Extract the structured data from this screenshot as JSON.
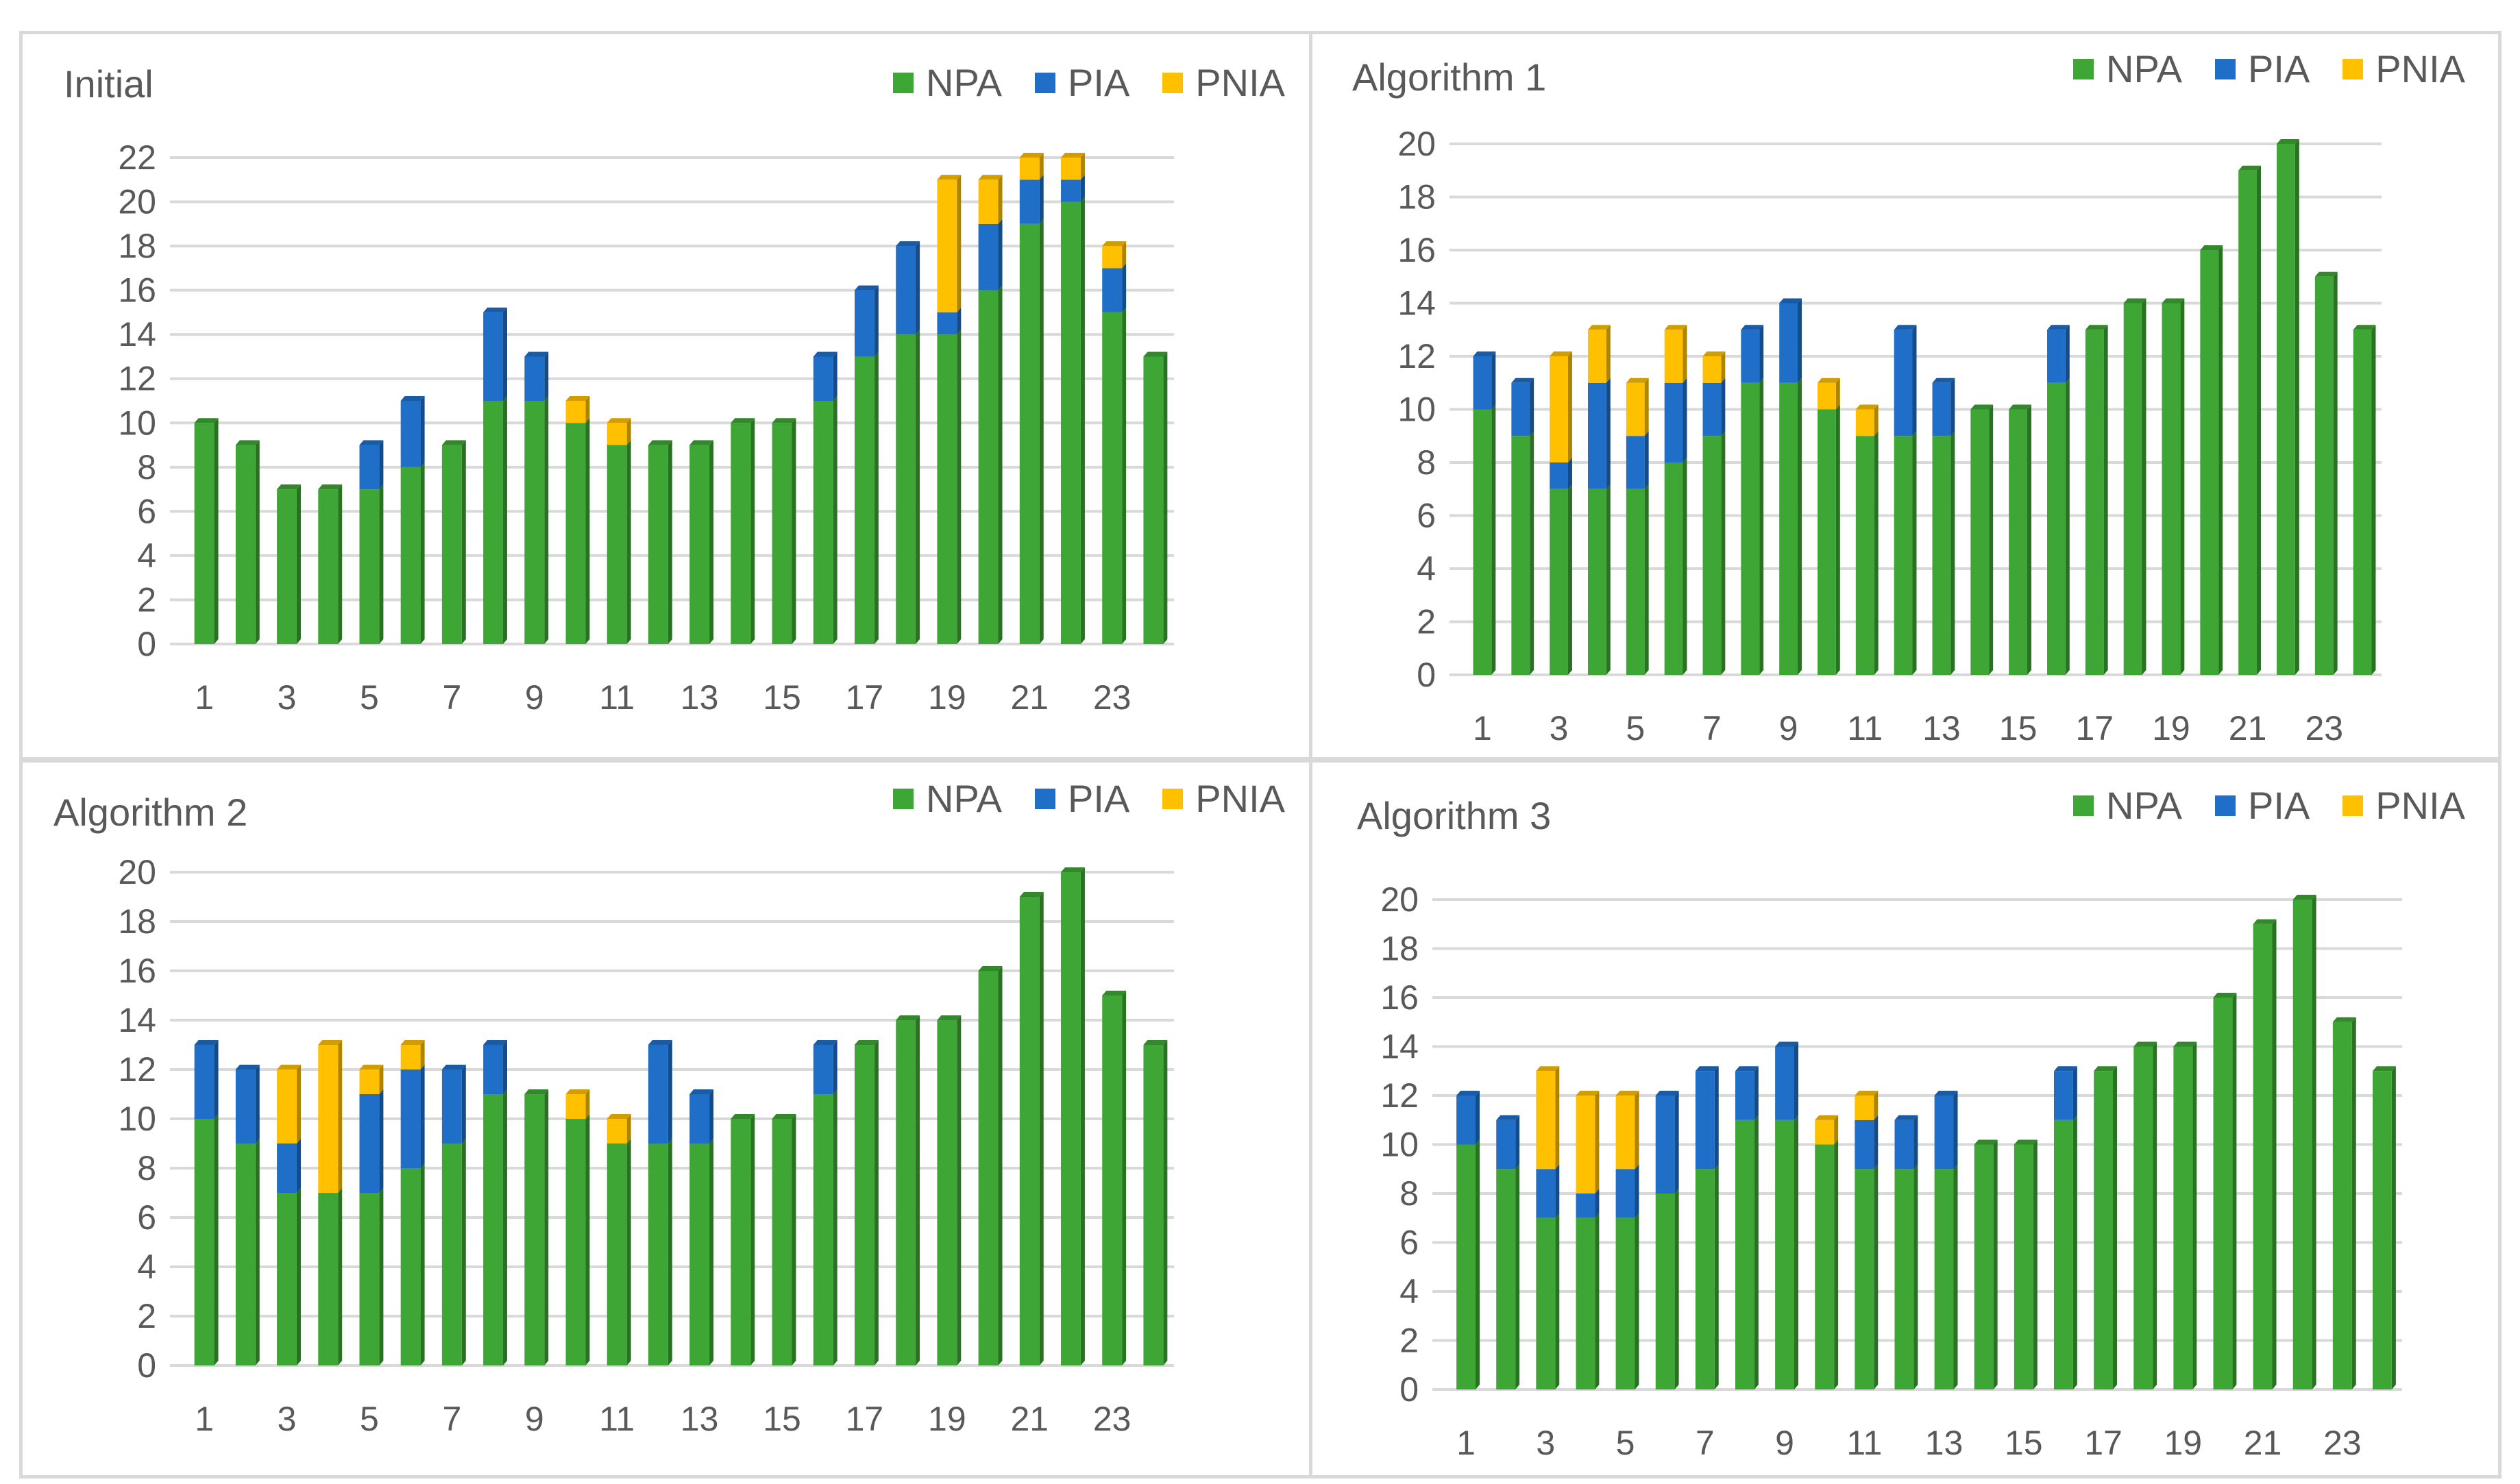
{
  "colors": {
    "NPA": "#3ea635",
    "PIA": "#1f6fc8",
    "PNIA": "#ffc000"
  },
  "chart_data": [
    {
      "type": "bar",
      "stacked": true,
      "title": "Initial",
      "legend": [
        "NPA",
        "PIA",
        "PNIA"
      ],
      "legend_position": "top-right",
      "categories": [
        1,
        2,
        3,
        4,
        5,
        6,
        7,
        8,
        9,
        10,
        11,
        12,
        13,
        14,
        15,
        16,
        17,
        18,
        19,
        20,
        21,
        22,
        23,
        24
      ],
      "x_tick_labels": [
        "1",
        "3",
        "5",
        "7",
        "9",
        "11",
        "13",
        "15",
        "17",
        "19",
        "21",
        "23"
      ],
      "ylim": [
        0,
        22
      ],
      "y_ticks": [
        0,
        2,
        4,
        6,
        8,
        10,
        12,
        14,
        16,
        18,
        20,
        22
      ],
      "series": [
        {
          "name": "NPA",
          "values": [
            10,
            9,
            7,
            7,
            7,
            8,
            9,
            11,
            11,
            10,
            9,
            9,
            9,
            10,
            10,
            11,
            13,
            14,
            14,
            16,
            19,
            20,
            15,
            13
          ]
        },
        {
          "name": "PIA",
          "values": [
            0,
            0,
            0,
            0,
            2,
            3,
            0,
            4,
            2,
            0,
            0,
            0,
            0,
            0,
            0,
            2,
            3,
            4,
            1,
            3,
            2,
            1,
            2,
            0
          ]
        },
        {
          "name": "PNIA",
          "values": [
            0,
            0,
            0,
            0,
            0,
            0,
            0,
            0,
            0,
            1,
            1,
            0,
            0,
            0,
            0,
            0,
            0,
            0,
            6,
            2,
            1,
            1,
            1,
            0
          ]
        }
      ]
    },
    {
      "type": "bar",
      "stacked": true,
      "title": "Algorithm 1",
      "legend": [
        "NPA",
        "PIA",
        "PNIA"
      ],
      "legend_position": "top-right",
      "categories": [
        1,
        2,
        3,
        4,
        5,
        6,
        7,
        8,
        9,
        10,
        11,
        12,
        13,
        14,
        15,
        16,
        17,
        18,
        19,
        20,
        21,
        22,
        23,
        24
      ],
      "x_tick_labels": [
        "1",
        "3",
        "5",
        "7",
        "9",
        "11",
        "13",
        "15",
        "17",
        "19",
        "21",
        "23"
      ],
      "ylim": [
        0,
        20
      ],
      "y_ticks": [
        0,
        2,
        4,
        6,
        8,
        10,
        12,
        14,
        16,
        18,
        20
      ],
      "series": [
        {
          "name": "NPA",
          "values": [
            10,
            9,
            7,
            7,
            7,
            8,
            9,
            11,
            11,
            10,
            9,
            9,
            9,
            10,
            10,
            11,
            13,
            14,
            14,
            16,
            19,
            20,
            15,
            13
          ]
        },
        {
          "name": "PIA",
          "values": [
            2,
            2,
            1,
            4,
            2,
            3,
            2,
            2,
            3,
            0,
            0,
            4,
            2,
            0,
            0,
            2,
            0,
            0,
            0,
            0,
            0,
            0,
            0,
            0
          ]
        },
        {
          "name": "PNIA",
          "values": [
            0,
            0,
            4,
            2,
            2,
            2,
            1,
            0,
            0,
            1,
            1,
            0,
            0,
            0,
            0,
            0,
            0,
            0,
            0,
            0,
            0,
            0,
            0,
            0
          ]
        }
      ]
    },
    {
      "type": "bar",
      "stacked": true,
      "title": "Algorithm 2",
      "legend": [
        "NPA",
        "PIA",
        "PNIA"
      ],
      "legend_position": "top-right",
      "categories": [
        1,
        2,
        3,
        4,
        5,
        6,
        7,
        8,
        9,
        10,
        11,
        12,
        13,
        14,
        15,
        16,
        17,
        18,
        19,
        20,
        21,
        22,
        23,
        24
      ],
      "x_tick_labels": [
        "1",
        "3",
        "5",
        "7",
        "9",
        "11",
        "13",
        "15",
        "17",
        "19",
        "21",
        "23"
      ],
      "ylim": [
        0,
        20
      ],
      "y_ticks": [
        0,
        2,
        4,
        6,
        8,
        10,
        12,
        14,
        16,
        18,
        20
      ],
      "series": [
        {
          "name": "NPA",
          "values": [
            10,
            9,
            7,
            7,
            7,
            8,
            9,
            11,
            11,
            10,
            9,
            9,
            9,
            10,
            10,
            11,
            13,
            14,
            14,
            16,
            19,
            20,
            15,
            13
          ]
        },
        {
          "name": "PIA",
          "values": [
            3,
            3,
            2,
            0,
            4,
            4,
            3,
            2,
            0,
            0,
            0,
            4,
            2,
            0,
            0,
            2,
            0,
            0,
            0,
            0,
            0,
            0,
            0,
            0
          ]
        },
        {
          "name": "PNIA",
          "values": [
            0,
            0,
            3,
            6,
            1,
            1,
            0,
            0,
            0,
            1,
            1,
            0,
            0,
            0,
            0,
            0,
            0,
            0,
            0,
            0,
            0,
            0,
            0,
            0
          ]
        }
      ]
    },
    {
      "type": "bar",
      "stacked": true,
      "title": "Algorithm 3",
      "legend": [
        "NPA",
        "PIA",
        "PNIA"
      ],
      "legend_position": "top-right",
      "categories": [
        1,
        2,
        3,
        4,
        5,
        6,
        7,
        8,
        9,
        10,
        11,
        12,
        13,
        14,
        15,
        16,
        17,
        18,
        19,
        20,
        21,
        22,
        23,
        24
      ],
      "x_tick_labels": [
        "1",
        "3",
        "5",
        "7",
        "9",
        "11",
        "13",
        "15",
        "17",
        "19",
        "21",
        "23"
      ],
      "ylim": [
        0,
        20
      ],
      "y_ticks": [
        0,
        2,
        4,
        6,
        8,
        10,
        12,
        14,
        16,
        18,
        20
      ],
      "series": [
        {
          "name": "NPA",
          "values": [
            10,
            9,
            7,
            7,
            7,
            8,
            9,
            11,
            11,
            10,
            9,
            9,
            9,
            10,
            10,
            11,
            13,
            14,
            14,
            16,
            19,
            20,
            15,
            13
          ]
        },
        {
          "name": "PIA",
          "values": [
            2,
            2,
            2,
            1,
            2,
            4,
            4,
            2,
            3,
            0,
            2,
            2,
            3,
            0,
            0,
            2,
            0,
            0,
            0,
            0,
            0,
            0,
            0,
            0
          ]
        },
        {
          "name": "PNIA",
          "values": [
            0,
            0,
            4,
            4,
            3,
            0,
            0,
            0,
            0,
            1,
            1,
            0,
            0,
            0,
            0,
            0,
            0,
            0,
            0,
            0,
            0,
            0,
            0,
            0
          ]
        }
      ]
    }
  ]
}
